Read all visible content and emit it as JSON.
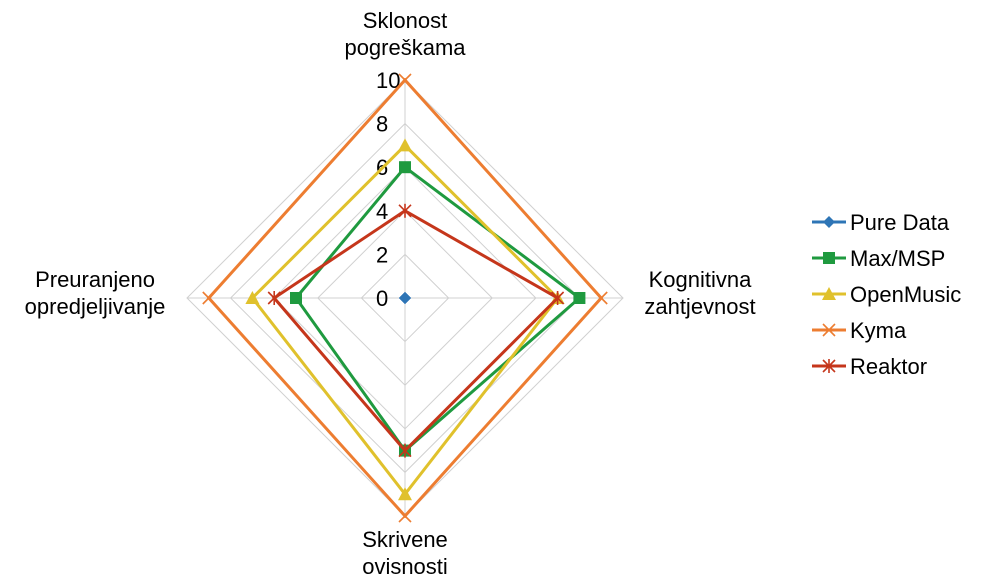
{
  "chart_data": {
    "type": "radar",
    "axes": [
      "Sklonost pogreškama",
      "Kognitivna zahtjevnost",
      "Skrivene ovisnosti",
      "Preuranjeno opredjeljivanje"
    ],
    "axis_label_lines": [
      [
        "Sklonost",
        "pogreškama"
      ],
      [
        "Kognitivna",
        "zahtjevnost"
      ],
      [
        "Skrivene",
        "ovisnosti"
      ],
      [
        "Preuranjeno",
        "opredjeljivanje"
      ]
    ],
    "rlim": [
      0,
      10
    ],
    "ticks": [
      "0",
      "2",
      "4",
      "6",
      "8",
      "10"
    ],
    "grid": true,
    "legend_position": "right",
    "series": [
      {
        "name": "Pure Data",
        "values": [
          0,
          0,
          0,
          0
        ],
        "color": "#2e75b6",
        "marker": "diamond"
      },
      {
        "name": "Max/MSP",
        "values": [
          6,
          8,
          7,
          5
        ],
        "color": "#1f9a3f",
        "marker": "square"
      },
      {
        "name": "OpenMusic",
        "values": [
          7,
          7,
          9,
          7
        ],
        "color": "#e0c12c",
        "marker": "triangle"
      },
      {
        "name": "Kyma",
        "values": [
          10,
          9,
          10,
          9
        ],
        "color": "#ed7d31",
        "marker": "x"
      },
      {
        "name": "Reaktor",
        "values": [
          4,
          7,
          7,
          6
        ],
        "color": "#c5361b",
        "marker": "star"
      }
    ]
  }
}
